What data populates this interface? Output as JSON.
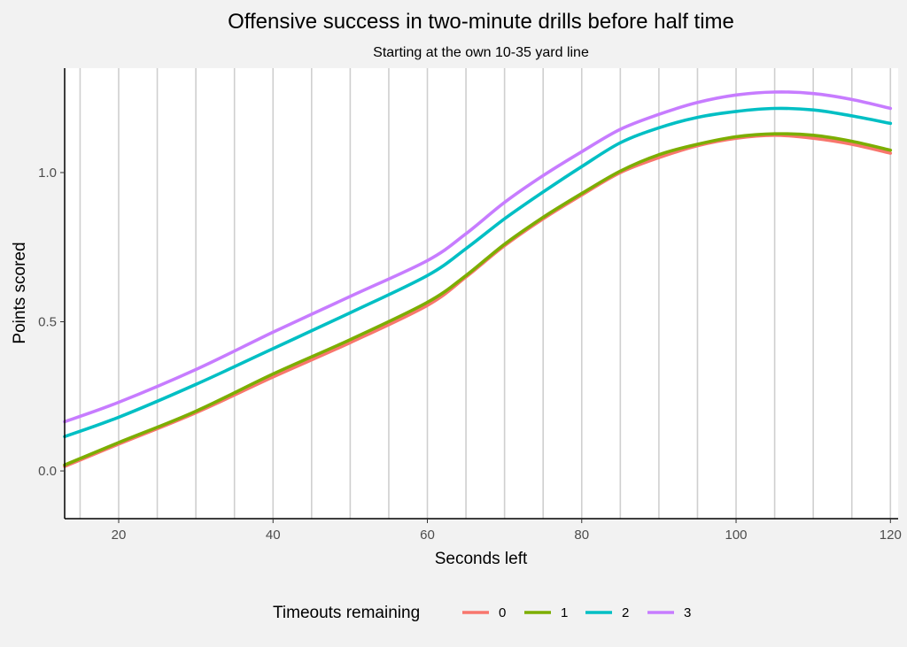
{
  "chart_data": {
    "type": "line",
    "title": "Offensive success in two-minute drills before half time",
    "subtitle": "Starting at the own 10-35 yard line",
    "xlabel": "Seconds left",
    "ylabel": "Points scored",
    "xlim": [
      13,
      121
    ],
    "ylim": [
      -0.16,
      1.35
    ],
    "x_ticks": [
      20,
      40,
      60,
      80,
      100,
      120
    ],
    "x_tick_labels": [
      "20",
      "40",
      "60",
      "80",
      "100",
      "120"
    ],
    "y_ticks": [
      0.0,
      0.5,
      1.0
    ],
    "y_tick_labels": [
      "0.0",
      "0.5",
      "1.0"
    ],
    "x_gridlines": [
      15,
      20,
      25,
      30,
      35,
      40,
      45,
      50,
      55,
      60,
      65,
      70,
      75,
      80,
      85,
      90,
      95,
      100,
      105,
      110,
      115,
      120
    ],
    "grid": "vertical lines only",
    "legend": {
      "title": "Timeouts remaining",
      "position": "bottom"
    },
    "x": [
      13,
      20,
      30,
      40,
      50,
      60,
      65,
      70,
      75,
      80,
      85,
      90,
      95,
      100,
      105,
      110,
      115,
      120
    ],
    "series": [
      {
        "name": "0",
        "color": "#f8766d",
        "values": [
          0.015,
          0.09,
          0.195,
          0.315,
          0.43,
          0.555,
          0.65,
          0.755,
          0.845,
          0.925,
          1.0,
          1.05,
          1.09,
          1.115,
          1.125,
          1.115,
          1.095,
          1.065
        ]
      },
      {
        "name": "1",
        "color": "#7cae00",
        "values": [
          0.02,
          0.095,
          0.2,
          0.325,
          0.44,
          0.565,
          0.655,
          0.76,
          0.85,
          0.93,
          1.005,
          1.06,
          1.095,
          1.12,
          1.13,
          1.125,
          1.105,
          1.075
        ]
      },
      {
        "name": "2",
        "color": "#00bfc4",
        "values": [
          0.115,
          0.18,
          0.29,
          0.41,
          0.53,
          0.655,
          0.745,
          0.845,
          0.935,
          1.02,
          1.1,
          1.15,
          1.185,
          1.205,
          1.215,
          1.21,
          1.19,
          1.165
        ]
      },
      {
        "name": "3",
        "color": "#c77cff",
        "values": [
          0.165,
          0.23,
          0.34,
          0.465,
          0.585,
          0.705,
          0.795,
          0.9,
          0.99,
          1.07,
          1.145,
          1.195,
          1.235,
          1.26,
          1.27,
          1.265,
          1.245,
          1.215
        ]
      }
    ]
  }
}
